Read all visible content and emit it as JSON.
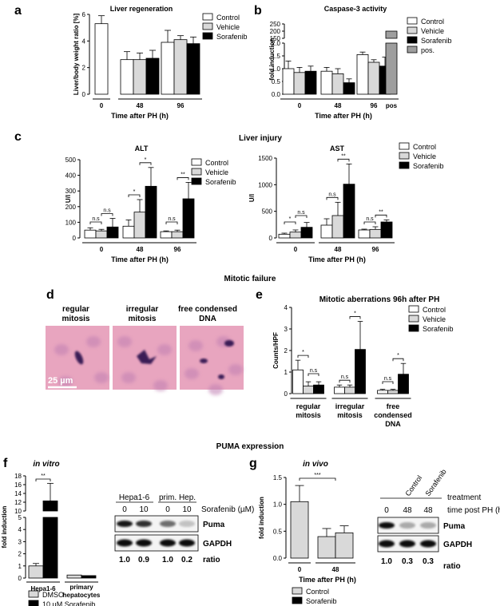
{
  "figure": {
    "section_mitotic_failure": "Mitotic failure",
    "section_puma": "PUMA expression",
    "legend_default": [
      "Control",
      "Vehicle",
      "Sorafenib"
    ],
    "legend_caspase": [
      "Control",
      "Vehicle",
      "Sorafenib",
      "pos."
    ],
    "colors": {
      "control": "#ffffff",
      "vehicle": "#d9d9d9",
      "sorafenib": "#000000",
      "pos": "#9e9e9e",
      "tissue": "#e8a5bf",
      "nucleus": "#3a1f57"
    },
    "xlabel_ph": "Time after PH (h)",
    "panel_labels": {
      "a": "a",
      "b": "b",
      "c": "c",
      "d": "d",
      "e": "e",
      "f": "f",
      "g": "g"
    }
  },
  "chart_data": [
    {
      "id": "a",
      "type": "bar",
      "title": "Liver regeneration",
      "ylabel": "Liver/body weight ratio [%]",
      "xlabel": "Time after PH (h)",
      "ylim": [
        0,
        6
      ],
      "yticks": [
        "0",
        "2",
        "4",
        "6"
      ],
      "groups": [
        "0",
        "48",
        "96"
      ],
      "series": [
        {
          "name": "Control",
          "values": [
            5.3,
            2.6,
            3.9
          ],
          "errors": [
            0.6,
            0.6,
            0.9
          ]
        },
        {
          "name": "Vehicle",
          "values": [
            null,
            2.6,
            4.1
          ],
          "errors": [
            null,
            0.5,
            0.3
          ]
        },
        {
          "name": "Sorafenib",
          "values": [
            null,
            2.7,
            3.8
          ],
          "errors": [
            null,
            0.6,
            0.5
          ]
        }
      ]
    },
    {
      "id": "b",
      "type": "bar",
      "title": "Caspase-3 activity",
      "ylabel": "fold induction",
      "xlabel": "Time after PH (h)",
      "yticks_lower": [
        "0.0",
        "0.5",
        "1.0",
        "1.5",
        "2.0"
      ],
      "yticks_upper": [
        "150",
        "200",
        "250"
      ],
      "groups": [
        "0",
        "48",
        "96",
        "pos"
      ],
      "series": [
        {
          "name": "Control",
          "values": [
            1.0,
            0.9,
            1.55
          ],
          "errors": [
            0.3,
            0.15,
            0.1
          ]
        },
        {
          "name": "Vehicle",
          "values": [
            0.85,
            0.8,
            1.25
          ],
          "errors": [
            0.2,
            0.2,
            0.1
          ]
        },
        {
          "name": "Sorafenib",
          "values": [
            0.9,
            0.45,
            1.1
          ],
          "errors": [
            0.2,
            0.15,
            0.35
          ]
        },
        {
          "name": "pos.",
          "values": [
            200
          ],
          "errors": [
            3
          ]
        }
      ]
    },
    {
      "id": "c1",
      "type": "bar",
      "title": "ALT",
      "panel_title": "Liver injury",
      "ylabel": "U/l",
      "xlabel": "Time after PH (h)",
      "ylim": [
        0,
        500
      ],
      "yticks": [
        "0",
        "100",
        "200",
        "300",
        "400",
        "500"
      ],
      "groups": [
        "0",
        "48",
        "96"
      ],
      "series": [
        {
          "name": "Control",
          "values": [
            50,
            75,
            40
          ],
          "errors": [
            15,
            40,
            5
          ]
        },
        {
          "name": "Vehicle",
          "values": [
            45,
            165,
            40
          ],
          "errors": [
            10,
            80,
            10
          ]
        },
        {
          "name": "Sorafenib",
          "values": [
            70,
            330,
            250
          ],
          "errors": [
            55,
            120,
            105
          ]
        }
      ],
      "significance": [
        [
          "n.s",
          "n.s"
        ],
        [
          "*",
          "*"
        ],
        [
          "n.s",
          "**"
        ]
      ]
    },
    {
      "id": "c2",
      "type": "bar",
      "title": "AST",
      "ylabel": "U/l",
      "xlabel": "Time after PH (h)",
      "ylim": [
        0,
        1500
      ],
      "yticks": [
        "0",
        "500",
        "1000",
        "1500"
      ],
      "groups": [
        "0",
        "48",
        "96"
      ],
      "series": [
        {
          "name": "Control",
          "values": [
            70,
            240,
            150
          ],
          "errors": [
            20,
            120,
            15
          ]
        },
        {
          "name": "Vehicle",
          "values": [
            110,
            420,
            160
          ],
          "errors": [
            40,
            250,
            50
          ]
        },
        {
          "name": "Sorafenib",
          "values": [
            200,
            1010,
            300
          ],
          "errors": [
            90,
            380,
            40
          ]
        }
      ],
      "significance": [
        [
          "*",
          "n.s"
        ],
        [
          "n.s",
          "**"
        ],
        [
          "n.s",
          "**"
        ]
      ]
    },
    {
      "id": "e",
      "type": "bar",
      "title": "Mitotic aberrations 96h after PH",
      "ylabel": "Counts/HPF",
      "ylim": [
        0,
        4
      ],
      "yticks": [
        "0",
        "1",
        "2",
        "3",
        "4"
      ],
      "groups": [
        "regular mitosis",
        "irregular mitosis",
        "free condensed DNA"
      ],
      "series": [
        {
          "name": "Control",
          "values": [
            1.1,
            0.3,
            0.15
          ],
          "errors": [
            0.45,
            0.1,
            0.05
          ]
        },
        {
          "name": "Vehicle",
          "values": [
            0.35,
            0.3,
            0.15
          ],
          "errors": [
            0.2,
            0.1,
            0.05
          ]
        },
        {
          "name": "Sorafenib",
          "values": [
            0.4,
            2.05,
            0.9
          ],
          "errors": [
            0.15,
            1.3,
            0.5
          ]
        }
      ],
      "significance": [
        [
          "*",
          "n.s"
        ],
        [
          "n.s",
          "*"
        ],
        [
          "n.s",
          "*"
        ]
      ]
    },
    {
      "id": "f",
      "type": "bar",
      "title": "in vitro",
      "ylabel": "fold induction",
      "yticks_lower": [
        "0",
        "1",
        "2",
        "3",
        "4",
        "5"
      ],
      "yticks_upper": [
        "10",
        "12",
        "14",
        "16",
        "18"
      ],
      "groups": [
        "Hepa1-6",
        "primary hepatocytes"
      ],
      "series": [
        {
          "name": "DMSO",
          "values": [
            1.0,
            0.25
          ],
          "errors": [
            0.2,
            0.05
          ]
        },
        {
          "name": "10 μM Sorafenib",
          "values": [
            12.3,
            0.2
          ],
          "errors": [
            4.0,
            0.05
          ]
        }
      ],
      "significance": "**"
    },
    {
      "id": "g",
      "type": "bar",
      "title": "in vivo",
      "ylabel": "fold induction",
      "xlabel": "Time after PH (h)",
      "ylim": [
        0,
        1.5
      ],
      "yticks": [
        "0.0",
        "0.5",
        "1.0",
        "1.5"
      ],
      "groups": [
        "0",
        "48"
      ],
      "series": [
        {
          "name": "Control",
          "values": [
            1.05,
            0.4
          ],
          "errors": [
            0.3,
            0.15
          ]
        },
        {
          "name": "Sorafenib",
          "values": [
            null,
            0.47
          ],
          "errors": [
            null,
            0.13
          ]
        }
      ],
      "significance": "***"
    }
  ],
  "micrographs": [
    {
      "label1": "regular",
      "label2": "mitosis",
      "scalebar": "25 µm"
    },
    {
      "label1": "irregular",
      "label2": "mitosis"
    },
    {
      "label1": "free condensed",
      "label2": "DNA"
    }
  ],
  "blot_f": {
    "groups": [
      "Hepa1-6",
      "prim. Hep."
    ],
    "lanes": [
      "0",
      "10",
      "0",
      "10"
    ],
    "lane_header": "Sorafenib (µM)",
    "rows": [
      "Puma",
      "GAPDH"
    ],
    "ratios": [
      "1.0",
      "0.9",
      "1.0",
      "0.2"
    ],
    "ratio_label": "ratio",
    "puma_intensity": [
      0.9,
      0.8,
      0.55,
      0.2
    ]
  },
  "blot_g": {
    "groups": [
      "Control",
      "Sorafenib"
    ],
    "treatment_label": "treatment",
    "time_label": "time post PH (h)",
    "lanes": [
      "0",
      "48",
      "48"
    ],
    "rows": [
      "Puma",
      "GAPDH"
    ],
    "ratios": [
      "1.0",
      "0.3",
      "0.3"
    ],
    "ratio_label": "ratio",
    "puma_intensity": [
      0.95,
      0.3,
      0.3
    ]
  },
  "legend_f": [
    "DMSO",
    "10 µM Sorafenib"
  ],
  "legend_g": [
    "Control",
    "Sorafenib"
  ]
}
